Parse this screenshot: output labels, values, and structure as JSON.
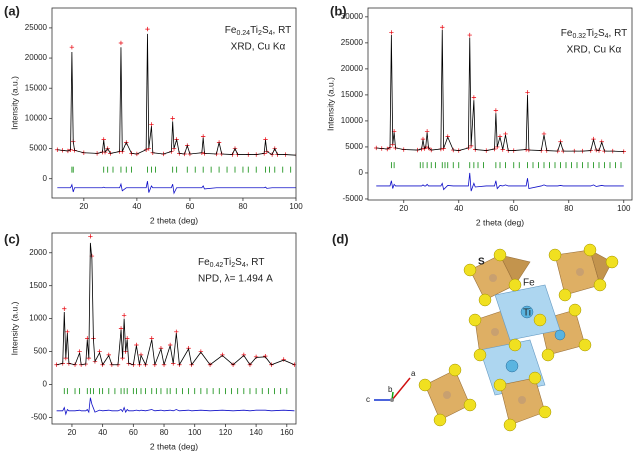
{
  "chart_data": [
    {
      "type": "rietveld",
      "panel_label": "(a)",
      "annotation": [
        "Fe",
        "0.24",
        "Ti",
        "2",
        "S",
        "4",
        ", RT"
      ],
      "annotation_2": "XRD, Cu Kα",
      "x_label": "2 theta (deg)",
      "y_label": "Intensity (a.u.)",
      "xlim": [
        8,
        100
      ],
      "xticks": [
        20,
        40,
        60,
        80,
        100
      ],
      "ylim": [
        -3200,
        28300
      ],
      "yticks": [
        0,
        5000,
        10000,
        15000,
        20000,
        25000
      ],
      "x": [
        10,
        12,
        14,
        15,
        15.5,
        16,
        16.5,
        20,
        25,
        27,
        27.5,
        28,
        29,
        30,
        33.5,
        34,
        34.5,
        36,
        38,
        40,
        43.5,
        44,
        44.5,
        45.5,
        46,
        50,
        53,
        53.5,
        54,
        55,
        56,
        58,
        59,
        60,
        64.5,
        65,
        65.5,
        70,
        71,
        72,
        76,
        77,
        78,
        82,
        85,
        88,
        88.5,
        89,
        91,
        92,
        93,
        96,
        100
      ],
      "series": [
        {
          "color": "#e8000b",
          "values": [
            4800,
            4700,
            4600,
            4800,
            21800,
            6200,
            4700,
            4300,
            4200,
            4400,
            6500,
            4400,
            5000,
            4200,
            4500,
            22500,
            4500,
            6000,
            4200,
            4100,
            4800,
            24800,
            5000,
            9000,
            4300,
            4100,
            4500,
            10000,
            5000,
            6500,
            4200,
            4100,
            5500,
            4100,
            4300,
            7000,
            4200,
            4100,
            6000,
            4100,
            4000,
            5000,
            4000,
            4000,
            4000,
            4200,
            6500,
            4500,
            4000,
            5000,
            4000,
            4000,
            3900
          ]
        },
        {
          "color": "#000000",
          "values": [
            4800,
            4700,
            4600,
            4800,
            21000,
            6200,
            4700,
            4300,
            4200,
            4400,
            6400,
            4400,
            5000,
            4200,
            4500,
            21800,
            4500,
            6000,
            4200,
            4100,
            4800,
            24000,
            5000,
            8700,
            4300,
            4100,
            4500,
            9500,
            5000,
            6500,
            4200,
            4100,
            5500,
            4100,
            4300,
            6800,
            4200,
            4100,
            6000,
            4100,
            4000,
            5000,
            4000,
            4000,
            4000,
            4200,
            6400,
            4500,
            4000,
            5000,
            4000,
            4000,
            3900
          ]
        },
        {
          "color": "#1010c8",
          "values": [
            -1500,
            -1500,
            -1500,
            -1500,
            -1000,
            -2200,
            -1500,
            -1500,
            -1500,
            -1500,
            -1400,
            -1500,
            -1500,
            -1500,
            -1500,
            -900,
            -2000,
            -1500,
            -1500,
            -1500,
            -1500,
            -400,
            -2300,
            -1200,
            -1500,
            -1500,
            -1500,
            -900,
            -2400,
            -1500,
            -1500,
            -1500,
            -1500,
            -1500,
            -1500,
            -1200,
            -1700,
            -1500,
            -1500,
            -1500,
            -1500,
            -1500,
            -1500,
            -1500,
            -1500,
            -1500,
            -1400,
            -1600,
            -1500,
            -1500,
            -1500,
            -1500,
            -1500
          ]
        }
      ],
      "bragg_color": "#0a8a0a",
      "bragg_level": 1500,
      "bragg": [
        15.5,
        16,
        27.5,
        29,
        31,
        34,
        36,
        38,
        44,
        45.5,
        47,
        53.5,
        55,
        59,
        62,
        65,
        68,
        71,
        74,
        77,
        80,
        82,
        85,
        88.5,
        90,
        92,
        95,
        98
      ]
    },
    {
      "type": "rietveld",
      "panel_label": "(b)",
      "annotation": [
        "Fe",
        "0.32",
        "Ti",
        "2",
        "S",
        "4",
        ", RT"
      ],
      "annotation_2": "XRD, Cu Kα",
      "x_label": "2 theta (deg)",
      "y_label": "Intensity (a.u.)",
      "xlim": [
        7,
        103
      ],
      "xticks": [
        20,
        40,
        60,
        80,
        100
      ],
      "ylim": [
        -5200,
        31700
      ],
      "yticks": [
        -5000,
        0,
        5000,
        10000,
        15000,
        20000,
        25000,
        30000
      ],
      "x": [
        10,
        12,
        14,
        15,
        15.5,
        16,
        16.5,
        17,
        20,
        25,
        26.5,
        27,
        27.5,
        28,
        28.5,
        29,
        30,
        33.5,
        34,
        34.5,
        36,
        38,
        40,
        43.5,
        44,
        44.5,
        45.5,
        46,
        50,
        53,
        53.5,
        54,
        55,
        56,
        57,
        58,
        60,
        64.5,
        65,
        65.5,
        70,
        71,
        72,
        76,
        77,
        78,
        82,
        85,
        88,
        89,
        90,
        91,
        92,
        93,
        96,
        100
      ],
      "series": [
        {
          "color": "#e8000b",
          "values": [
            4800,
            4700,
            4600,
            4900,
            27000,
            5500,
            8000,
            4800,
            4500,
            4400,
            4600,
            6500,
            4700,
            5000,
            8000,
            4800,
            4400,
            4600,
            28000,
            4700,
            7000,
            4400,
            4300,
            4800,
            26500,
            5200,
            14500,
            4500,
            4300,
            4600,
            12000,
            5000,
            7000,
            4500,
            7500,
            4300,
            4300,
            4500,
            15500,
            4400,
            4300,
            7500,
            4300,
            4200,
            6000,
            4200,
            4200,
            4200,
            4300,
            6500,
            4400,
            4300,
            6000,
            4200,
            4200,
            4100
          ]
        },
        {
          "color": "#000000",
          "values": [
            4800,
            4700,
            4600,
            4900,
            26500,
            5500,
            7800,
            4800,
            4500,
            4400,
            4600,
            6400,
            4700,
            5000,
            7800,
            4800,
            4400,
            4600,
            27500,
            4700,
            6900,
            4400,
            4300,
            4800,
            26000,
            5200,
            14000,
            4500,
            4300,
            4600,
            11500,
            5000,
            6900,
            4500,
            7300,
            4300,
            4300,
            4500,
            15000,
            4400,
            4300,
            7300,
            4300,
            4200,
            5900,
            4200,
            4200,
            4200,
            4300,
            6400,
            4400,
            4300,
            5900,
            4200,
            4200,
            4100
          ]
        },
        {
          "color": "#1010c8",
          "values": [
            -2500,
            -2500,
            -2500,
            -2500,
            -1500,
            -3000,
            -2200,
            -2500,
            -2500,
            -2500,
            -2500,
            -2300,
            -2500,
            -2500,
            -2200,
            -2500,
            -2500,
            -2500,
            -2000,
            -3200,
            -2400,
            -2500,
            -2500,
            -2500,
            0,
            -3500,
            -2000,
            -2700,
            -2500,
            -2500,
            -1500,
            -3000,
            -2400,
            -2500,
            -2300,
            -2500,
            -2500,
            -2500,
            -1000,
            -3000,
            -2500,
            -2300,
            -2500,
            -2500,
            -2400,
            -2500,
            -2500,
            -2500,
            -2500,
            -2300,
            -2600,
            -2500,
            -2400,
            -2500,
            -2500,
            -2500
          ]
        }
      ],
      "bragg_color": "#0a8a0a",
      "bragg_level": 1500,
      "bragg": [
        15.5,
        16.5,
        26,
        27,
        28.5,
        30,
        31.5,
        34,
        35,
        36,
        38,
        40,
        44,
        45.5,
        47,
        49,
        53.5,
        55,
        57,
        60,
        62,
        65,
        67,
        69,
        71,
        73,
        75,
        77,
        79,
        81,
        83,
        85,
        87,
        89,
        91,
        93,
        95,
        97,
        99
      ]
    },
    {
      "type": "rietveld",
      "panel_label": "(c)",
      "annotation": [
        "Fe",
        "0.42",
        "Ti",
        "2",
        "S",
        "4",
        ", RT"
      ],
      "annotation_2": "NPD, λ= 1.494 A",
      "x_label": "2 theta (deg)",
      "y_label": "Intensity (a.u.)",
      "xlim": [
        7,
        166
      ],
      "xticks": [
        20,
        40,
        60,
        80,
        100,
        120,
        140,
        160
      ],
      "ylim": [
        -600,
        2300
      ],
      "yticks": [
        -500,
        0,
        500,
        1000,
        1500,
        2000
      ],
      "x": [
        10,
        14,
        15,
        16,
        17,
        18,
        22,
        25,
        26,
        29,
        30,
        31,
        32,
        33,
        34,
        35,
        38,
        40,
        44,
        46,
        50,
        52,
        53,
        54,
        55,
        56,
        57,
        60,
        62,
        64,
        65,
        68,
        72,
        74,
        78,
        80,
        84,
        86,
        88,
        90,
        96,
        98,
        104,
        110,
        118,
        125,
        132,
        136,
        140,
        146,
        150,
        158,
        165
      ],
      "series": [
        {
          "color": "#e8000b",
          "values": [
            300,
            320,
            1150,
            400,
            800,
            320,
            300,
            500,
            300,
            310,
            700,
            400,
            2250,
            1950,
            700,
            350,
            500,
            300,
            450,
            300,
            300,
            850,
            400,
            1050,
            500,
            700,
            320,
            300,
            600,
            300,
            450,
            300,
            700,
            300,
            550,
            300,
            600,
            320,
            800,
            300,
            550,
            300,
            500,
            300,
            450,
            300,
            450,
            300,
            420,
            430,
            300,
            380,
            300
          ]
        },
        {
          "color": "#000000",
          "values": [
            300,
            320,
            1100,
            400,
            780,
            320,
            300,
            480,
            300,
            310,
            680,
            400,
            2150,
            1900,
            680,
            350,
            480,
            300,
            440,
            300,
            300,
            830,
            400,
            1000,
            500,
            680,
            320,
            300,
            590,
            300,
            440,
            300,
            680,
            300,
            540,
            300,
            590,
            320,
            780,
            300,
            540,
            300,
            490,
            300,
            440,
            300,
            440,
            300,
            410,
            420,
            300,
            370,
            300
          ]
        },
        {
          "color": "#1010c8",
          "values": [
            -400,
            -400,
            -350,
            -450,
            -380,
            -400,
            -400,
            -390,
            -400,
            -400,
            -380,
            -420,
            -200,
            -300,
            -360,
            -420,
            -390,
            -400,
            -390,
            -400,
            -400,
            -380,
            -410,
            -350,
            -420,
            -380,
            -400,
            -400,
            -390,
            -400,
            -390,
            -400,
            -380,
            -400,
            -390,
            -400,
            -390,
            -400,
            -380,
            -400,
            -390,
            -400,
            -390,
            -400,
            -390,
            -400,
            -390,
            -400,
            -390,
            -390,
            -400,
            -390,
            -400
          ]
        }
      ],
      "bragg_color": "#0a8a0a",
      "bragg_level": -100,
      "bragg": [
        15,
        17,
        22,
        25,
        30,
        32,
        34,
        38,
        40,
        44,
        48,
        52,
        54,
        56,
        60,
        62,
        65,
        68,
        72,
        75,
        78,
        82,
        84,
        88,
        92,
        96,
        100,
        104,
        108,
        112,
        116,
        120,
        124,
        128,
        132,
        136,
        140,
        144,
        148,
        152,
        156,
        160
      ]
    }
  ],
  "structure": {
    "panel_label": "(d)",
    "atoms": [
      "S",
      "Fe",
      "Ti"
    ],
    "axes": [
      "a",
      "b",
      "c"
    ]
  }
}
